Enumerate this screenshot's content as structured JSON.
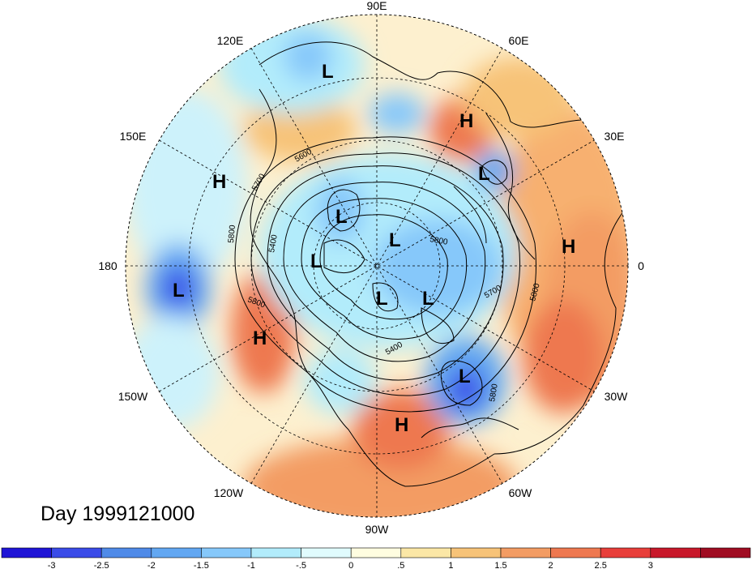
{
  "title": "Day 1999121000",
  "longitude_labels": [
    {
      "text": "90E",
      "angle": -90
    },
    {
      "text": "60E",
      "angle": -60
    },
    {
      "text": "30E",
      "angle": -30
    },
    {
      "text": "0",
      "angle": 0
    },
    {
      "text": "30W",
      "angle": 30
    },
    {
      "text": "60W",
      "angle": 60
    },
    {
      "text": "90W",
      "angle": 90
    },
    {
      "text": "120W",
      "angle": 120
    },
    {
      "text": "150W",
      "angle": 150
    },
    {
      "text": "180",
      "angle": 180
    },
    {
      "text": "150E",
      "angle": 210
    },
    {
      "text": "120E",
      "angle": 240
    }
  ],
  "contour_labels": [
    "5600",
    "5700",
    "5800",
    "5400",
    "5800",
    "5700",
    "5800",
    "5400",
    "5800",
    "5800"
  ],
  "pressure_centers": [
    {
      "type": "L"
    },
    {
      "type": "H"
    },
    {
      "type": "H"
    },
    {
      "type": "L"
    },
    {
      "type": "L"
    },
    {
      "type": "L"
    },
    {
      "type": "H"
    },
    {
      "type": "L"
    },
    {
      "type": "L"
    },
    {
      "type": "L"
    },
    {
      "type": "L"
    },
    {
      "type": "H"
    },
    {
      "type": "L"
    },
    {
      "type": "H"
    }
  ],
  "colorbar": {
    "colors": [
      "#1f14d6",
      "#3a4be8",
      "#4f8ae8",
      "#62a7f2",
      "#86c8fa",
      "#b2ecfb",
      "#e0fbfd",
      "#fffde0",
      "#fbe7a6",
      "#f7c378",
      "#f39c63",
      "#ee7850",
      "#e83e3a",
      "#c8182a",
      "#a00c22"
    ],
    "ticks": [
      "-3",
      "-2.5",
      "-2",
      "-1.5",
      "-1",
      "-.5",
      "0",
      ".5",
      "1",
      "1.5",
      "2",
      "2.5",
      "3"
    ]
  }
}
